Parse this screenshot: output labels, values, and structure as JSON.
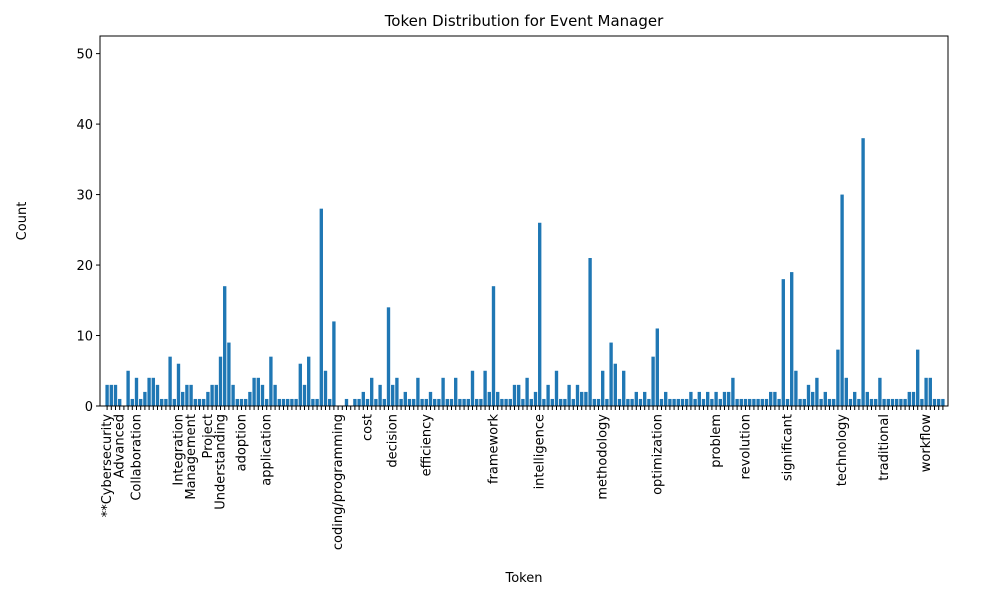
{
  "chart_data": {
    "type": "bar",
    "title": "Token Distribution for Event Manager",
    "x_label": "Token",
    "y_label": "Count",
    "color": "#1f77b4",
    "categories": [
      "**Cybersecurity",
      null,
      null,
      "Advanced",
      null,
      null,
      null,
      "Collaboration",
      null,
      null,
      null,
      null,
      null,
      null,
      null,
      null,
      null,
      "Integration",
      null,
      null,
      "Management",
      null,
      null,
      null,
      "Project",
      null,
      null,
      "Understanding",
      null,
      null,
      null,
      null,
      "adoption",
      null,
      null,
      null,
      null,
      null,
      "application",
      null,
      null,
      null,
      null,
      null,
      null,
      null,
      null,
      null,
      null,
      null,
      null,
      null,
      null,
      null,
      null,
      "coding/programming",
      null,
      null,
      null,
      null,
      null,
      null,
      "cost",
      null,
      null,
      null,
      null,
      null,
      "decision",
      null,
      null,
      null,
      null,
      null,
      null,
      null,
      "efficiency",
      null,
      null,
      null,
      null,
      null,
      null,
      null,
      null,
      null,
      null,
      null,
      null,
      null,
      null,
      null,
      "framework",
      null,
      null,
      null,
      null,
      null,
      null,
      null,
      null,
      null,
      null,
      "intelligence",
      null,
      null,
      null,
      null,
      null,
      null,
      null,
      null,
      null,
      null,
      null,
      null,
      null,
      null,
      "methodology",
      null,
      null,
      null,
      null,
      null,
      null,
      null,
      null,
      null,
      null,
      null,
      null,
      "optimization",
      null,
      null,
      null,
      null,
      null,
      null,
      null,
      null,
      null,
      null,
      null,
      null,
      null,
      "problem",
      null,
      null,
      null,
      null,
      null,
      null,
      "revolution",
      null,
      null,
      null,
      null,
      null,
      null,
      null,
      null,
      null,
      "significant",
      null,
      null,
      null,
      null,
      null,
      null,
      null,
      null,
      null,
      null,
      null,
      null,
      "technology",
      null,
      null,
      null,
      null,
      null,
      null,
      null,
      null,
      null,
      "traditional",
      null,
      null,
      null,
      null,
      null,
      null,
      null,
      null,
      null,
      "workflow",
      null,
      null,
      null,
      null
    ],
    "values": [
      3,
      3,
      3,
      1,
      0,
      5,
      1,
      4,
      1,
      2,
      4,
      4,
      3,
      1,
      1,
      7,
      1,
      6,
      2,
      3,
      3,
      1,
      1,
      1,
      2,
      3,
      3,
      7,
      17,
      9,
      3,
      1,
      1,
      1,
      2,
      4,
      4,
      3,
      1,
      7,
      3,
      1,
      1,
      1,
      1,
      1,
      6,
      3,
      7,
      1,
      1,
      28,
      5,
      1,
      12,
      0,
      0,
      1,
      0,
      1,
      1,
      2,
      1,
      4,
      1,
      3,
      1,
      14,
      3,
      4,
      1,
      2,
      1,
      1,
      4,
      1,
      1,
      2,
      1,
      1,
      4,
      1,
      1,
      4,
      1,
      1,
      1,
      5,
      1,
      1,
      5,
      2,
      17,
      2,
      1,
      1,
      1,
      3,
      3,
      1,
      4,
      1,
      2,
      26,
      1,
      3,
      1,
      5,
      1,
      1,
      3,
      1,
      3,
      2,
      2,
      21,
      1,
      1,
      5,
      1,
      9,
      6,
      1,
      5,
      1,
      1,
      2,
      1,
      2,
      1,
      7,
      11,
      1,
      2,
      1,
      1,
      1,
      1,
      1,
      2,
      1,
      2,
      1,
      2,
      1,
      2,
      1,
      2,
      2,
      4,
      1,
      1,
      1,
      1,
      1,
      1,
      1,
      1,
      2,
      2,
      1,
      18,
      1,
      19,
      5,
      1,
      1,
      3,
      2,
      4,
      1,
      2,
      1,
      1,
      8,
      30,
      4,
      1,
      2,
      1,
      38,
      2,
      1,
      1,
      4,
      1,
      1,
      1,
      1,
      1,
      1,
      2,
      2,
      8,
      1,
      4,
      4,
      1,
      1,
      1
    ],
    "ylim": [
      0,
      52.5
    ],
    "yticks": [
      0,
      10,
      20,
      30,
      40,
      50
    ]
  }
}
